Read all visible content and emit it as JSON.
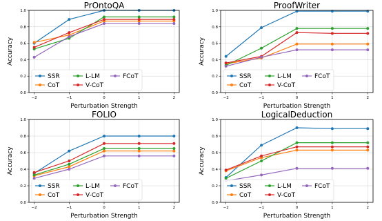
{
  "colors": {
    "SSR": "#1f77b4",
    "CoT": "#ff7f0e",
    "L-LM": "#2ca02c",
    "V-CoT": "#d62728",
    "FCoT": "#9467bd"
  },
  "chart_data": [
    {
      "type": "line",
      "title": "PrOntoQA",
      "xlabel": "Perturbation Strength",
      "ylabel": "Accuracy",
      "x": [
        -2,
        -1,
        0,
        1,
        2
      ],
      "xlim": [
        -2.15,
        2.15
      ],
      "ylim": [
        0.0,
        1.0
      ],
      "xticks": [
        "−2",
        "−1",
        "0",
        "1",
        "2"
      ],
      "yticks": [
        "0.0",
        "0.2",
        "0.4",
        "0.6",
        "0.8",
        "1.0"
      ],
      "grid": true,
      "legend_placement": "lower-center",
      "series": [
        {
          "name": "SSR",
          "values": [
            0.6,
            0.89,
            1.0,
            1.0,
            1.0
          ]
        },
        {
          "name": "CoT",
          "values": [
            0.61,
            0.7,
            0.87,
            0.87,
            0.87
          ]
        },
        {
          "name": "L-LM",
          "values": [
            0.53,
            0.66,
            0.92,
            0.92,
            0.92
          ]
        },
        {
          "name": "V-CoT",
          "values": [
            0.55,
            0.73,
            0.89,
            0.89,
            0.89
          ]
        },
        {
          "name": "FCoT",
          "values": [
            0.43,
            0.68,
            0.84,
            0.84,
            0.84
          ]
        }
      ]
    },
    {
      "type": "line",
      "title": "ProofWriter",
      "xlabel": "Perturbation Strength",
      "ylabel": "Accuracy",
      "x": [
        -2,
        -1,
        0,
        1,
        2
      ],
      "xlim": [
        -2.15,
        2.15
      ],
      "ylim": [
        0.0,
        1.0
      ],
      "xticks": [
        "−2",
        "−1",
        "0",
        "1",
        "2"
      ],
      "yticks": [
        "0.0",
        "0.2",
        "0.4",
        "0.6",
        "0.8",
        "1.0"
      ],
      "grid": true,
      "legend_placement": "lower-center",
      "series": [
        {
          "name": "SSR",
          "values": [
            0.44,
            0.79,
            0.99,
            0.99,
            0.99
          ]
        },
        {
          "name": "CoT",
          "values": [
            0.35,
            0.42,
            0.59,
            0.59,
            0.59
          ]
        },
        {
          "name": "L-LM",
          "values": [
            0.33,
            0.54,
            0.78,
            0.78,
            0.78
          ]
        },
        {
          "name": "V-CoT",
          "values": [
            0.36,
            0.44,
            0.73,
            0.72,
            0.72
          ]
        },
        {
          "name": "FCoT",
          "values": [
            0.32,
            0.43,
            0.52,
            0.52,
            0.52
          ]
        }
      ]
    },
    {
      "type": "line",
      "title": "FOLIO",
      "xlabel": "Perturbation Strength",
      "ylabel": "Accuracy",
      "x": [
        -2,
        -1,
        0,
        1,
        2
      ],
      "xlim": [
        -2.15,
        2.15
      ],
      "ylim": [
        0.0,
        1.0
      ],
      "xticks": [
        "−2",
        "−1",
        "0",
        "1",
        "2"
      ],
      "yticks": [
        "0.0",
        "0.2",
        "0.4",
        "0.6",
        "0.8",
        "1.0"
      ],
      "grid": true,
      "legend_placement": "lower-center",
      "series": [
        {
          "name": "SSR",
          "values": [
            0.35,
            0.62,
            0.8,
            0.8,
            0.8
          ]
        },
        {
          "name": "CoT",
          "values": [
            0.32,
            0.43,
            0.62,
            0.62,
            0.62
          ]
        },
        {
          "name": "L-LM",
          "values": [
            0.33,
            0.46,
            0.65,
            0.65,
            0.65
          ]
        },
        {
          "name": "V-CoT",
          "values": [
            0.36,
            0.5,
            0.71,
            0.71,
            0.71
          ]
        },
        {
          "name": "FCoT",
          "values": [
            0.29,
            0.4,
            0.56,
            0.56,
            0.56
          ]
        }
      ]
    },
    {
      "type": "line",
      "title": "LogicalDeduction",
      "xlabel": "Perturbation Strength",
      "ylabel": "Accuracy",
      "x": [
        -2,
        -1,
        0,
        1,
        2
      ],
      "xlim": [
        -2.15,
        2.15
      ],
      "ylim": [
        0.0,
        1.0
      ],
      "xticks": [
        "−2",
        "−1",
        "0",
        "1",
        "2"
      ],
      "yticks": [
        "0.0",
        "0.2",
        "0.4",
        "0.6",
        "0.8",
        "1.0"
      ],
      "grid": true,
      "legend_placement": "lower-center",
      "series": [
        {
          "name": "SSR",
          "values": [
            0.3,
            0.69,
            0.9,
            0.89,
            0.89
          ]
        },
        {
          "name": "CoT",
          "values": [
            0.38,
            0.54,
            0.63,
            0.63,
            0.63
          ]
        },
        {
          "name": "L-LM",
          "values": [
            0.29,
            0.5,
            0.72,
            0.72,
            0.72
          ]
        },
        {
          "name": "V-CoT",
          "values": [
            0.39,
            0.56,
            0.67,
            0.67,
            0.67
          ]
        },
        {
          "name": "FCoT",
          "values": [
            0.26,
            0.33,
            0.41,
            0.41,
            0.41
          ]
        }
      ]
    }
  ]
}
